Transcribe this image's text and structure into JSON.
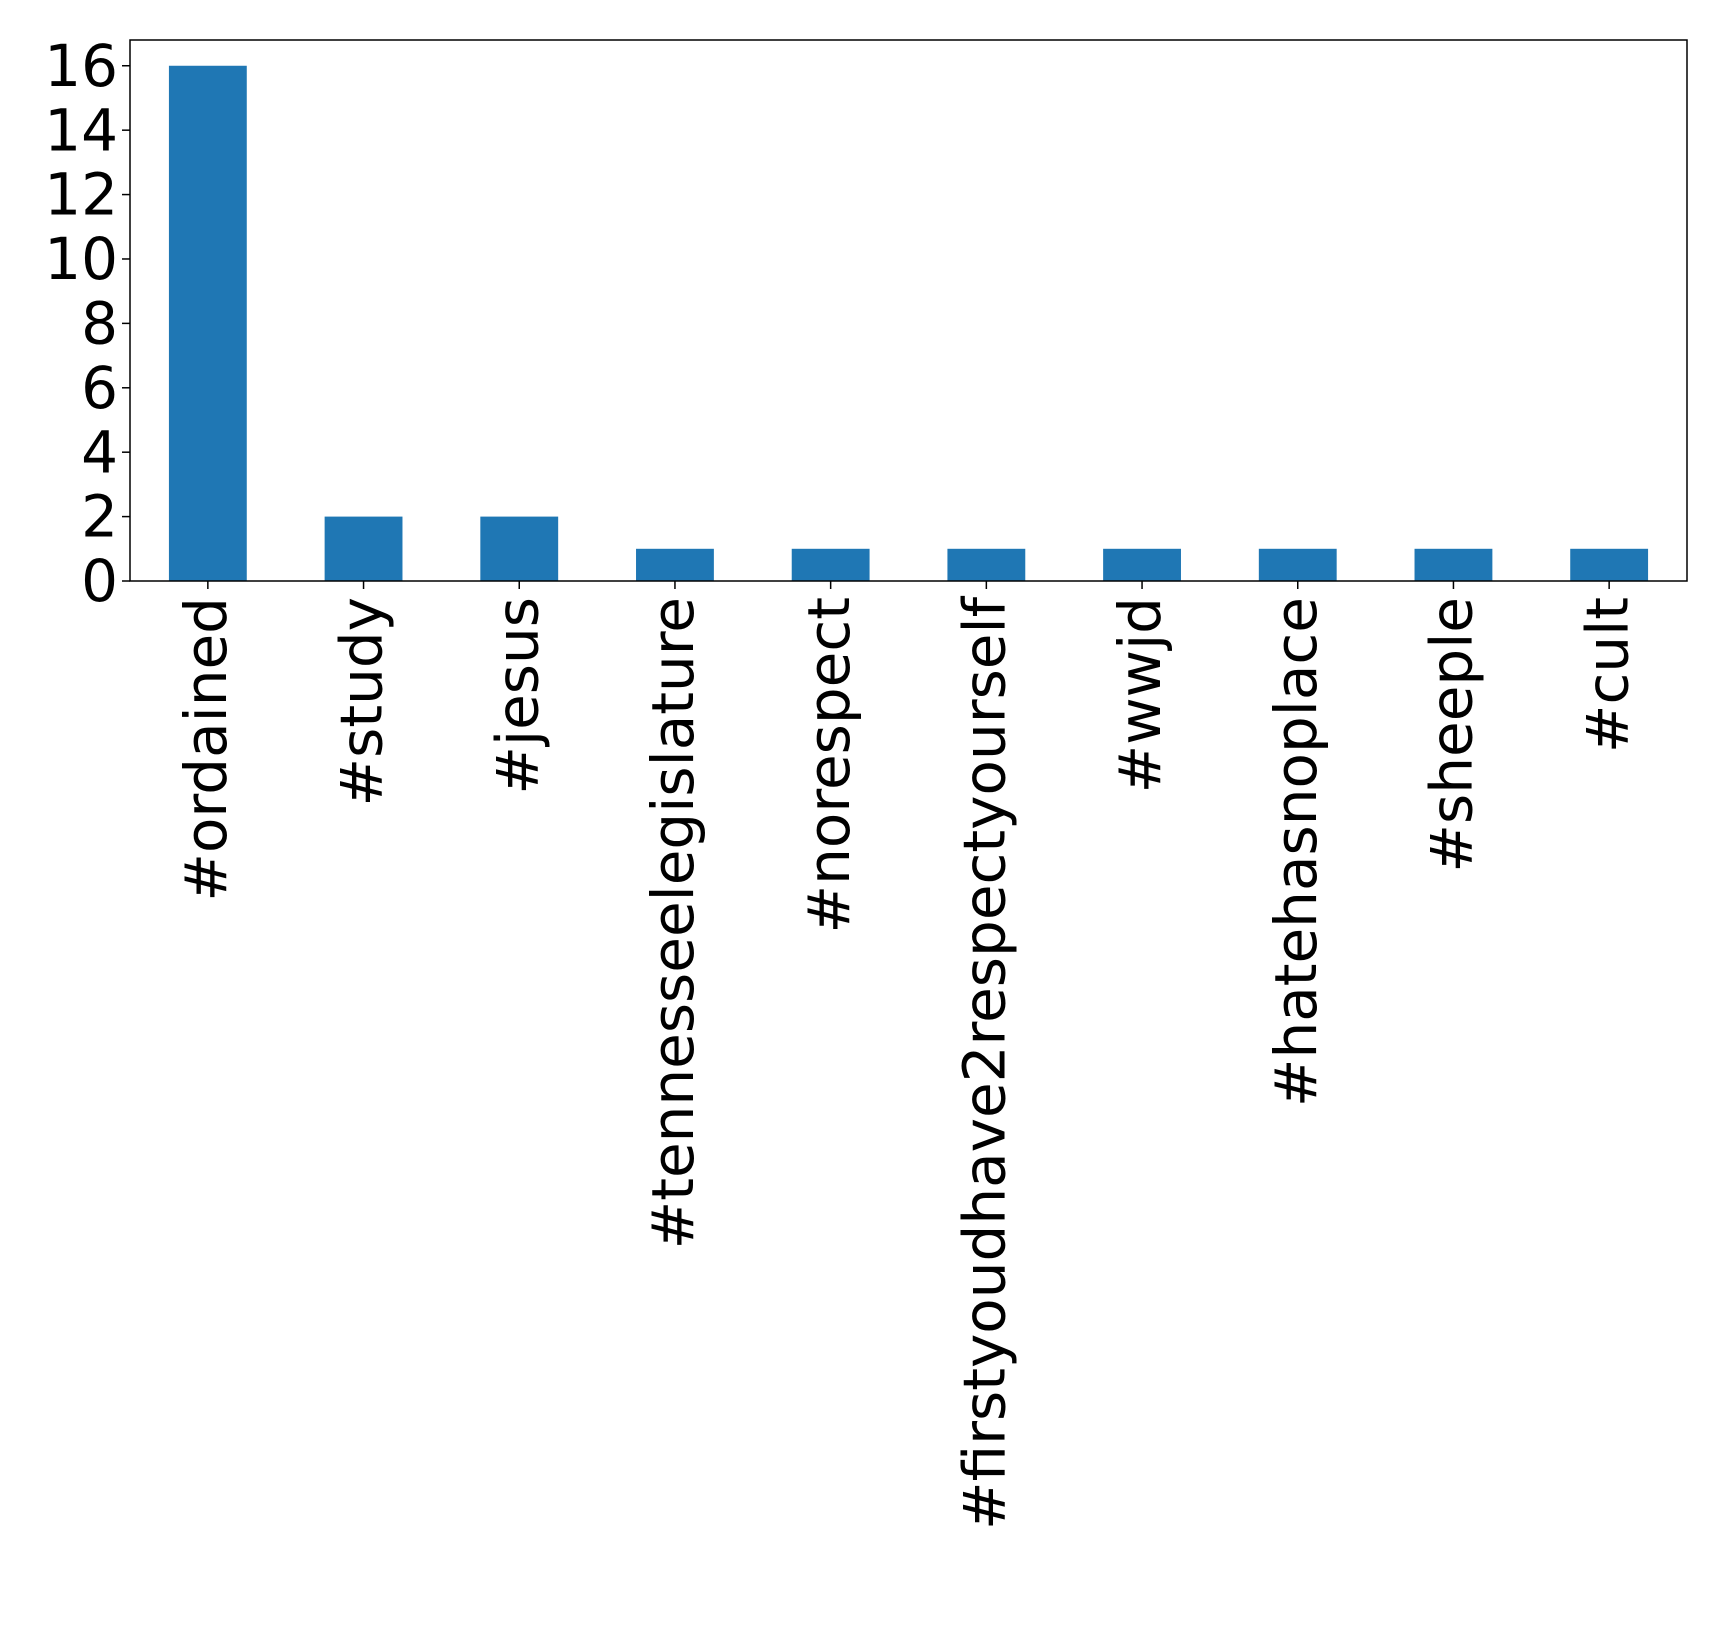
{
  "chart_data": {
    "type": "bar",
    "categories": [
      "#ordained",
      "#study",
      "#jesus",
      "#tennesseelegislature",
      "#norespect",
      "#firstyoudhave2respectyourself",
      "#wwjd",
      "#hatehasnoplace",
      "#sheeple",
      "#cult"
    ],
    "values": [
      16,
      2,
      2,
      1,
      1,
      1,
      1,
      1,
      1,
      1
    ],
    "color": "#1f77b4",
    "ylim": [
      0,
      16.8
    ],
    "yticks": [
      0,
      2,
      4,
      6,
      8,
      10,
      12,
      14,
      16
    ],
    "grid": false
  }
}
